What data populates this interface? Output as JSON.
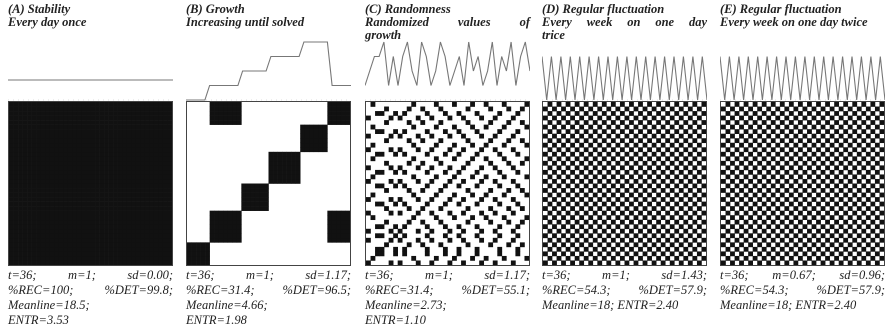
{
  "panels": [
    {
      "key": "stability",
      "title_lines": [
        "(A) Stability",
        "Every day once"
      ],
      "stats_lines": [
        "t=36; m=1; sd=0.00;",
        "%REC=100; %DET=99.8;",
        "Meanline=18.5;",
        "ENTR=3.53"
      ],
      "pattern": "full"
    },
    {
      "key": "growth",
      "title_lines": [
        "(B) Growth",
        "Increasing until solved"
      ],
      "stats_lines": [
        "t=36; m=1; sd=1.17;",
        "%REC=31.4; %DET=96.5;",
        "Meanline=4.66;",
        "ENTR=1.98"
      ],
      "pattern": "growth"
    },
    {
      "key": "randomness",
      "title_lines": [
        "(C) Randomness",
        "Randomized values of",
        "growth"
      ],
      "stats_lines": [
        "t=36; m=1; sd=1.17;",
        "%REC=31.4; %DET=55.1;",
        "Meanline=2.73;",
        "ENTR=1.10"
      ],
      "pattern": "random"
    },
    {
      "key": "fluct-1",
      "title_lines": [
        "(D) Regular fluctuation",
        "Every week on one day",
        "trice"
      ],
      "stats_lines": [
        "t=36; m=1; sd=1.43;",
        "%REC=54.3; %DET=57.9;",
        "Meanline=18; ENTR=2.40"
      ],
      "pattern": "checker"
    },
    {
      "key": "fluct-2",
      "title_lines": [
        "(E) Regular fluctuation",
        "Every week on one day twice"
      ],
      "stats_lines": [
        "t=36; m=0.67; sd=0.96;",
        "%REC=54.3; %DET=57.9;",
        "Meanline=18; ENTR=2.40"
      ],
      "pattern": "checker"
    }
  ]
}
